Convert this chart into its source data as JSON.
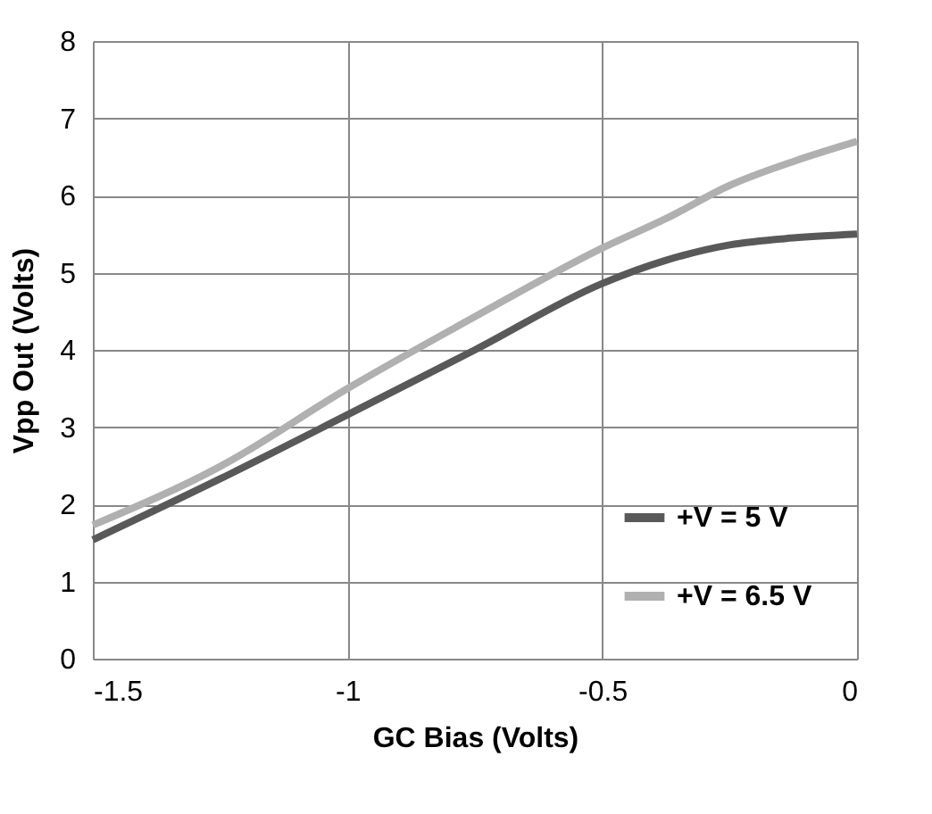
{
  "chart_data": {
    "type": "line",
    "xlabel": "GC Bias (Volts)",
    "ylabel": "Vpp Out (Volts)",
    "x": [
      -1.5,
      -1.25,
      -1.0,
      -0.75,
      -0.5,
      -0.375,
      -0.25,
      -0.125,
      0
    ],
    "series": [
      {
        "name": "+V = 5 V",
        "color": "#595959",
        "values": [
          1.54,
          2.33,
          3.16,
          4.0,
          4.86,
          5.16,
          5.36,
          5.45,
          5.5
        ]
      },
      {
        "name": "+V = 6.5 V",
        "color": "#b0b0b0",
        "values": [
          1.73,
          2.49,
          3.5,
          4.43,
          5.32,
          5.7,
          6.13,
          6.44,
          6.7
        ]
      }
    ],
    "xlim": [
      -1.5,
      0
    ],
    "xticks": [
      -1.5,
      -1,
      -0.5,
      0
    ],
    "ylim": [
      0,
      8
    ],
    "yticks": [
      0,
      1,
      2,
      3,
      4,
      5,
      6,
      7,
      8
    ],
    "grid": true,
    "legend": "bottom right",
    "marker": "none",
    "line_style": "solid"
  }
}
